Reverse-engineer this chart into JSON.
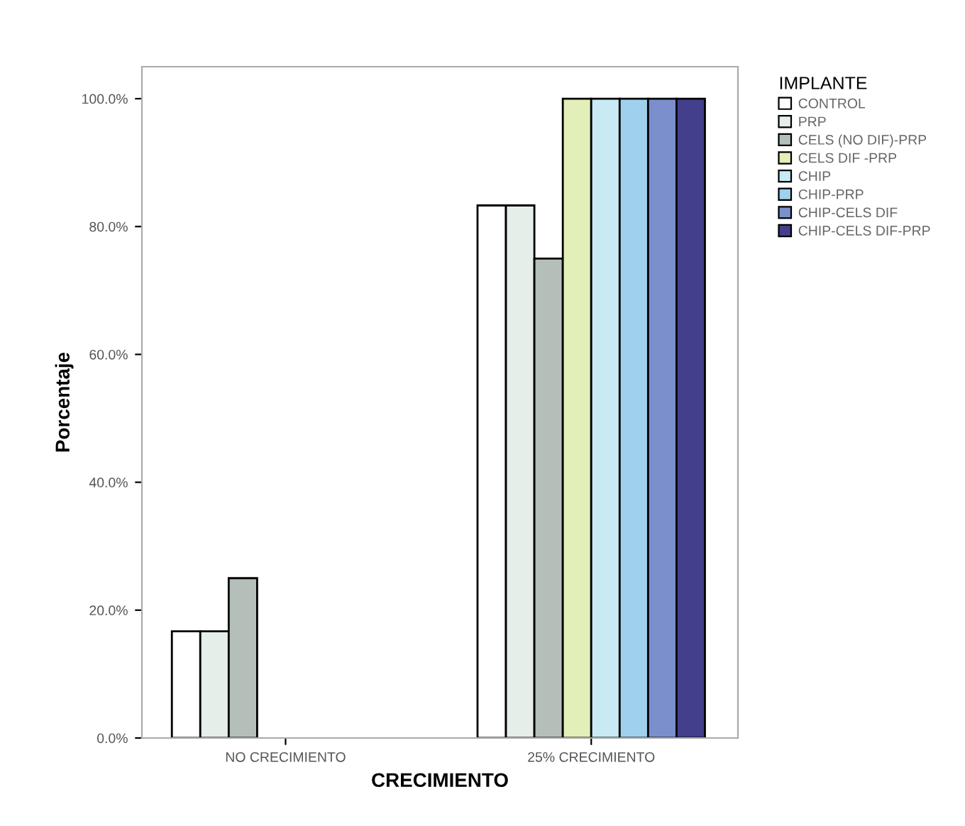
{
  "chart_data": {
    "type": "bar",
    "xlabel": "CRECIMIENTO",
    "ylabel": "Porcentaje",
    "legend_title": "IMPLANTE",
    "legend": "top right",
    "categories": [
      "NO CRECIMIENTO",
      "25% CRECIMIENTO"
    ],
    "series": [
      {
        "name": "CONTROL",
        "color": "#ffffff",
        "values": [
          16.7,
          83.3
        ]
      },
      {
        "name": "PRP",
        "color": "#e6eee9",
        "values": [
          16.7,
          83.3
        ]
      },
      {
        "name": "CELS (NO DIF)-PRP",
        "color": "#b4bfb9",
        "values": [
          25,
          75
        ]
      },
      {
        "name": "CELS DIF -PRP",
        "color": "#e2efb8",
        "values": [
          0,
          100
        ]
      },
      {
        "name": "CHIP",
        "color": "#c8eaf5",
        "values": [
          0,
          100
        ]
      },
      {
        "name": "CHIP-PRP",
        "color": "#9fd1ee",
        "values": [
          0,
          100
        ]
      },
      {
        "name": "CHIP-CELS DIF",
        "color": "#7a8fcc",
        "values": [
          0,
          100
        ]
      },
      {
        "name": "CHIP-CELS DIF-PRP",
        "color": "#433f8c",
        "values": [
          0,
          100
        ]
      }
    ],
    "ylim": [
      0,
      105
    ],
    "yticks": [
      {
        "value": 0,
        "label": "0.0%"
      },
      {
        "value": 20,
        "label": "20.0%"
      },
      {
        "value": 40,
        "label": "40.0%"
      },
      {
        "value": 60,
        "label": "60.0%"
      },
      {
        "value": 80,
        "label": "80.0%"
      },
      {
        "value": 100,
        "label": "100.0%"
      }
    ],
    "grid": false
  }
}
